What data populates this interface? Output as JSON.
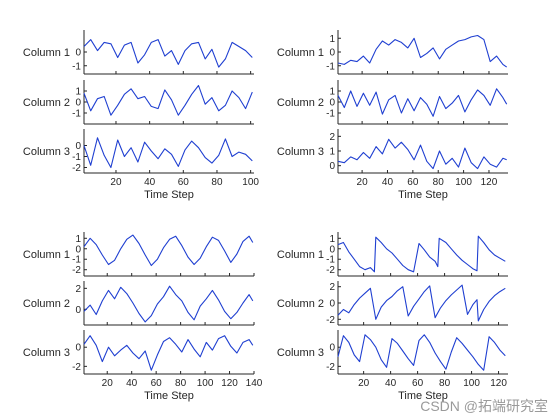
{
  "colors": {
    "line": "#1f3fd1",
    "axis": "#262626",
    "background": "#ffffff"
  },
  "watermark": "CSDN @拓端研究室",
  "chart_data": [
    {
      "type": "line",
      "panel": "top-left",
      "xlabel": "Time Step",
      "xlim": [
        1,
        102
      ],
      "xticks": [
        20,
        40,
        60,
        80,
        100
      ],
      "series": [
        {
          "name": "Column 1",
          "ylim": [
            -1.6,
            1.6
          ],
          "yticks": [
            -1,
            0
          ],
          "x": [
            1,
            5,
            9,
            13,
            17,
            21,
            25,
            29,
            33,
            37,
            41,
            45,
            49,
            53,
            57,
            61,
            65,
            69,
            73,
            77,
            81,
            85,
            89,
            93,
            97,
            101
          ],
          "values": [
            0.4,
            0.9,
            0.1,
            0.7,
            0.6,
            -0.4,
            0.5,
            0.7,
            -0.8,
            -0.2,
            0.7,
            0.9,
            -0.3,
            0.1,
            -0.9,
            0.1,
            0.6,
            0.7,
            -0.5,
            0.2,
            -1.1,
            -0.5,
            0.7,
            0.4,
            0.1,
            -0.4
          ]
        },
        {
          "name": "Column 2",
          "ylim": [
            -2.0,
            2.0
          ],
          "yticks": [
            -1,
            0,
            1
          ],
          "x": [
            1,
            5,
            9,
            13,
            17,
            21,
            25,
            29,
            33,
            37,
            41,
            45,
            49,
            53,
            57,
            61,
            65,
            69,
            73,
            77,
            81,
            85,
            89,
            93,
            97,
            101
          ],
          "values": [
            0.8,
            -0.8,
            0.3,
            0.5,
            -1.2,
            -0.3,
            0.7,
            1.2,
            0.3,
            0.5,
            -0.4,
            -0.6,
            1.1,
            0.2,
            -1.2,
            -0.3,
            0.7,
            1.5,
            -0.2,
            0.4,
            -0.8,
            -0.3,
            1.0,
            0.4,
            -0.6,
            0.9
          ]
        },
        {
          "name": "Column 3",
          "ylim": [
            -2.5,
            1.5
          ],
          "yticks": [
            -2,
            -1,
            0
          ],
          "x": [
            1,
            5,
            9,
            13,
            17,
            21,
            25,
            29,
            33,
            37,
            41,
            45,
            49,
            53,
            57,
            61,
            65,
            69,
            73,
            77,
            81,
            85,
            89,
            93,
            97,
            101
          ],
          "values": [
            0.0,
            -1.8,
            0.7,
            -0.9,
            -2.0,
            0.5,
            -1.0,
            -0.2,
            -1.5,
            0.3,
            -0.5,
            -1.2,
            -0.3,
            -0.8,
            -1.9,
            -0.4,
            0.4,
            -0.2,
            -1.1,
            -1.6,
            -0.9,
            0.6,
            -1.0,
            -0.6,
            -0.8,
            -1.4
          ]
        }
      ]
    },
    {
      "type": "line",
      "panel": "top-right",
      "xlabel": "Time Step",
      "xlim": [
        1,
        135
      ],
      "xticks": [
        20,
        40,
        60,
        80,
        100,
        120
      ],
      "series": [
        {
          "name": "Column 1",
          "ylim": [
            -1.6,
            1.6
          ],
          "yticks": [
            -1,
            0,
            1
          ],
          "x": [
            1,
            6,
            11,
            16,
            21,
            26,
            31,
            36,
            41,
            46,
            51,
            56,
            61,
            66,
            71,
            76,
            81,
            86,
            91,
            96,
            101,
            106,
            111,
            116,
            121,
            126,
            131,
            134
          ],
          "values": [
            -0.8,
            -0.9,
            -0.6,
            -0.7,
            -0.3,
            -0.8,
            0.2,
            0.8,
            0.5,
            0.9,
            0.7,
            0.3,
            1.0,
            -0.4,
            -0.1,
            0.3,
            -0.5,
            0.2,
            0.5,
            0.8,
            0.9,
            1.1,
            1.2,
            0.9,
            -0.7,
            -0.3,
            -0.9,
            -1.1
          ]
        },
        {
          "name": "Column 2",
          "ylim": [
            -2.0,
            2.0
          ],
          "yticks": [
            -1,
            0,
            1
          ],
          "x": [
            1,
            6,
            11,
            16,
            21,
            26,
            31,
            36,
            41,
            46,
            51,
            56,
            61,
            66,
            71,
            76,
            81,
            86,
            91,
            96,
            101,
            106,
            111,
            116,
            121,
            126,
            131,
            134
          ],
          "values": [
            0.6,
            -0.5,
            1.0,
            -0.4,
            0.8,
            -0.3,
            0.9,
            -1.1,
            0.2,
            0.6,
            -1.0,
            0.3,
            -0.8,
            0.4,
            -0.2,
            -1.3,
            0.5,
            -0.6,
            -0.1,
            0.6,
            -0.9,
            0.2,
            1.1,
            0.6,
            -0.3,
            1.2,
            0.4,
            -0.2
          ]
        },
        {
          "name": "Column 3",
          "ylim": [
            -0.5,
            2.5
          ],
          "yticks": [
            0,
            1,
            2
          ],
          "x": [
            1,
            6,
            11,
            16,
            21,
            26,
            31,
            36,
            41,
            46,
            51,
            56,
            61,
            66,
            71,
            76,
            81,
            86,
            91,
            96,
            101,
            106,
            111,
            116,
            121,
            126,
            131,
            134
          ],
          "values": [
            0.3,
            0.2,
            0.6,
            0.4,
            0.9,
            0.5,
            1.3,
            0.8,
            1.8,
            1.2,
            1.6,
            1.1,
            0.4,
            1.4,
            0.3,
            -0.2,
            1.0,
            0.1,
            0.5,
            -0.1,
            1.2,
            0.2,
            -0.2,
            0.6,
            0.1,
            -0.1,
            0.5,
            0.4
          ]
        }
      ]
    },
    {
      "type": "line",
      "panel": "bottom-left",
      "xlabel": "Time Step",
      "xlim": [
        1,
        140
      ],
      "xticks": [
        20,
        40,
        60,
        80,
        100,
        120,
        140
      ],
      "series": [
        {
          "name": "Column 1",
          "ylim": [
            -2.6,
            1.6
          ],
          "yticks": [
            -2,
            -1,
            0,
            1
          ],
          "x": [
            1,
            6,
            11,
            16,
            21,
            26,
            31,
            36,
            41,
            46,
            51,
            56,
            61,
            66,
            71,
            76,
            81,
            86,
            91,
            96,
            101,
            106,
            111,
            116,
            121,
            126,
            131,
            136,
            139
          ],
          "values": [
            0.2,
            1.0,
            0.4,
            -0.6,
            -1.5,
            -1.1,
            0.0,
            0.9,
            1.3,
            0.5,
            -0.6,
            -1.6,
            -1.0,
            0.1,
            0.9,
            1.2,
            0.3,
            -0.8,
            -1.5,
            -0.9,
            0.2,
            1.1,
            0.8,
            -0.2,
            -1.3,
            -0.5,
            0.7,
            1.2,
            0.6
          ]
        },
        {
          "name": "Column 2",
          "ylim": [
            -1.5,
            2.7
          ],
          "yticks": [
            0,
            2
          ],
          "x": [
            1,
            6,
            11,
            16,
            21,
            26,
            31,
            36,
            41,
            46,
            51,
            56,
            61,
            66,
            71,
            76,
            81,
            86,
            91,
            96,
            101,
            106,
            111,
            116,
            121,
            126,
            131,
            136,
            139
          ],
          "values": [
            -0.2,
            0.4,
            -0.5,
            0.8,
            1.8,
            1.0,
            2.1,
            1.5,
            0.6,
            -0.4,
            -1.2,
            -0.6,
            0.5,
            1.2,
            2.2,
            1.4,
            0.8,
            -0.3,
            -1.0,
            0.3,
            1.0,
            1.8,
            0.9,
            -0.2,
            -0.9,
            -0.3,
            0.6,
            1.4,
            0.8
          ]
        },
        {
          "name": "Column 3",
          "ylim": [
            -2.8,
            1.8
          ],
          "yticks": [
            -2,
            0
          ],
          "x": [
            1,
            6,
            11,
            16,
            21,
            26,
            31,
            36,
            41,
            46,
            51,
            56,
            61,
            66,
            71,
            76,
            81,
            86,
            91,
            96,
            101,
            106,
            111,
            116,
            121,
            126,
            131,
            136,
            139
          ],
          "values": [
            0.3,
            1.2,
            0.2,
            -1.5,
            0.0,
            -0.9,
            -0.3,
            0.2,
            -0.6,
            -1.2,
            -0.4,
            -2.4,
            -0.8,
            0.6,
            1.0,
            0.3,
            -0.5,
            0.8,
            -0.2,
            -1.0,
            0.5,
            -0.3,
            0.9,
            1.2,
            0.1,
            -0.6,
            0.5,
            0.8,
            0.2
          ]
        }
      ]
    },
    {
      "type": "line",
      "panel": "bottom-right",
      "xlabel": "Time Step",
      "xlim": [
        1,
        127
      ],
      "xticks": [
        20,
        40,
        60,
        80,
        100,
        120
      ],
      "series": [
        {
          "name": "Column 1",
          "ylim": [
            -2.6,
            1.6
          ],
          "yticks": [
            -2,
            -1,
            0,
            1
          ],
          "x": [
            1,
            5,
            9,
            13,
            17,
            21,
            25,
            28,
            29,
            33,
            37,
            41,
            45,
            49,
            53,
            57,
            61,
            65,
            69,
            73,
            75,
            76,
            81,
            85,
            89,
            93,
            97,
            101,
            104,
            105,
            109,
            113,
            117,
            121,
            125
          ],
          "values": [
            0.4,
            0.6,
            -0.3,
            -1.0,
            -1.7,
            -2.0,
            -1.8,
            -2.2,
            1.1,
            0.6,
            0.0,
            -0.4,
            -1.0,
            -1.6,
            -2.0,
            -2.2,
            0.5,
            -0.1,
            -0.8,
            -1.2,
            -1.7,
            1.0,
            0.6,
            0.0,
            -0.6,
            -1.1,
            -1.5,
            -1.9,
            -2.1,
            1.2,
            0.6,
            -0.1,
            -0.6,
            -0.9,
            -1.2
          ]
        },
        {
          "name": "Column 2",
          "ylim": [
            -2.7,
            2.7
          ],
          "yticks": [
            -2,
            0,
            2
          ],
          "x": [
            1,
            5,
            9,
            13,
            17,
            21,
            25,
            29,
            33,
            37,
            41,
            45,
            49,
            53,
            57,
            61,
            65,
            69,
            73,
            77,
            81,
            85,
            89,
            93,
            97,
            101,
            104,
            105,
            109,
            113,
            117,
            121,
            125
          ],
          "values": [
            -1.5,
            -0.8,
            -1.2,
            -0.2,
            0.6,
            1.2,
            1.8,
            -2.0,
            -0.5,
            0.3,
            0.8,
            1.5,
            2.0,
            -1.6,
            -0.4,
            0.5,
            1.4,
            2.1,
            -1.8,
            -0.6,
            0.3,
            1.0,
            1.6,
            2.2,
            -1.4,
            -0.2,
            0.4,
            -2.2,
            -0.8,
            0.2,
            0.9,
            1.4,
            1.8
          ]
        },
        {
          "name": "Column 3",
          "ylim": [
            -2.8,
            1.8
          ],
          "yticks": [
            -2,
            0
          ],
          "x": [
            1,
            5,
            9,
            13,
            17,
            21,
            25,
            29,
            33,
            37,
            41,
            45,
            49,
            53,
            57,
            61,
            65,
            69,
            73,
            77,
            81,
            85,
            89,
            93,
            97,
            101,
            105,
            109,
            113,
            117,
            121,
            125
          ],
          "values": [
            -1.0,
            1.2,
            0.5,
            -0.8,
            -1.5,
            1.3,
            0.8,
            0.0,
            -1.3,
            -2.1,
            0.9,
            0.4,
            -0.4,
            -1.2,
            -1.9,
            0.7,
            1.3,
            0.5,
            -0.6,
            -1.5,
            -2.3,
            -0.5,
            1.0,
            0.4,
            -0.3,
            -1.0,
            -1.8,
            -2.4,
            1.1,
            0.5,
            -0.3,
            -0.9
          ]
        }
      ]
    }
  ]
}
